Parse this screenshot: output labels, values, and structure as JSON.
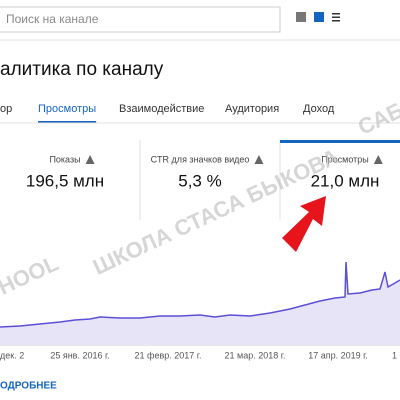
{
  "search": {
    "placeholder": "Поиск на канале"
  },
  "title": "алитика по каналу",
  "tabs": [
    "ор",
    "Просмотры",
    "Взаимодействие",
    "Аудитория",
    "Доход"
  ],
  "active_tab": 1,
  "metrics": [
    {
      "label": "Показы",
      "value": "196,5 млн"
    },
    {
      "label": "CTR для значков видео",
      "value": "5,3 %"
    },
    {
      "label": "Просмотры",
      "value": "21,0 млн"
    }
  ],
  "active_metric": 2,
  "chart": {
    "x_labels": [
      "дек. 2",
      "25 янв. 2016 г.",
      "21 февр. 2017 г.",
      "21 мар. 2018 г.",
      "17 апр. 2019 г.",
      "1"
    ]
  },
  "link": "ОДРОБНЕЕ",
  "watermark": [
    "HOOL",
    "ШКОЛА СТАСА БЫКОВА",
    "САБ"
  ]
}
